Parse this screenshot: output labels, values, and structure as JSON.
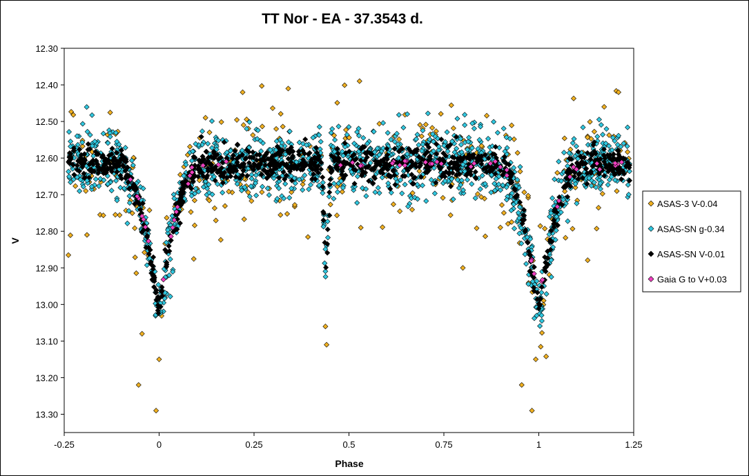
{
  "chart_data": {
    "type": "scatter",
    "title": "TT Nor - EA - 37.3543  d.",
    "xlabel": "Phase",
    "ylabel": "V",
    "xlim": [
      -0.25,
      1.25
    ],
    "ylim": [
      13.35,
      12.3
    ],
    "y_inverted": true,
    "x_ticks": [
      "-0.25",
      "0",
      "0.25",
      "0.5",
      "0.75",
      "1",
      "1.25"
    ],
    "y_ticks": [
      "12.30",
      "12.40",
      "12.50",
      "12.60",
      "12.70",
      "12.80",
      "12.90",
      "13.00",
      "13.10",
      "13.20",
      "13.30"
    ],
    "grid": false,
    "legend_position": "right",
    "marker": "diamond",
    "series": [
      {
        "name": "ASAS-3 V-0.04",
        "color": "#F0B020",
        "light_curve": {
          "baseline": 12.62,
          "scatter": 0.09,
          "count": 300,
          "primary_eclipse": {
            "center": 0.0,
            "depth": 0.4,
            "half_width": 0.12
          },
          "secondary_eclipse": {
            "center": 0.44,
            "depth": 0.3,
            "half_width": 0.012
          }
        },
        "outliers": [
          {
            "x": -0.054,
            "y": 13.22
          },
          {
            "x": -0.008,
            "y": 13.29
          },
          {
            "x": 0.0,
            "y": 13.15
          },
          {
            "x": -0.045,
            "y": 13.08
          },
          {
            "x": 0.441,
            "y": 13.11
          },
          {
            "x": 0.438,
            "y": 13.06
          },
          {
            "x": 0.982,
            "y": 13.29
          },
          {
            "x": 0.992,
            "y": 13.15
          },
          {
            "x": 0.955,
            "y": 13.22
          },
          {
            "x": 0.34,
            "y": 12.41
          },
          {
            "x": 0.22,
            "y": 12.42
          },
          {
            "x": 1.21,
            "y": 12.42
          },
          {
            "x": -0.19,
            "y": 12.81
          },
          {
            "x": 0.8,
            "y": 12.9
          }
        ]
      },
      {
        "name": "ASAS-SN g-0.34",
        "color": "#30C8E0",
        "light_curve": {
          "baseline": 12.61,
          "scatter": 0.045,
          "count": 1400,
          "primary_eclipse": {
            "center": 0.0,
            "depth": 0.42,
            "half_width": 0.12
          },
          "secondary_eclipse": {
            "center": 0.44,
            "depth": 0.3,
            "half_width": 0.012
          }
        }
      },
      {
        "name": "ASAS-SN V-0.01",
        "color": "#000000",
        "light_curve": {
          "baseline": 12.615,
          "scatter": 0.022,
          "count": 1000,
          "primary_eclipse": {
            "center": 0.0,
            "depth": 0.4,
            "half_width": 0.12
          },
          "secondary_eclipse": {
            "center": 0.44,
            "depth": 0.3,
            "half_width": 0.012
          }
        }
      },
      {
        "name": "Gaia G to V+0.03",
        "color": "#F040C0",
        "light_curve": {
          "baseline": 12.615,
          "scatter": 0.006,
          "count": 60,
          "primary_eclipse": {
            "center": 0.0,
            "depth": 0.38,
            "half_width": 0.12
          },
          "secondary_eclipse": {
            "center": 0.44,
            "depth": 0.3,
            "half_width": 0.012
          },
          "phase_ranges": [
            [
              -0.21,
              -0.19
            ],
            [
              -0.09,
              0.22
            ],
            [
              0.45,
              0.9
            ],
            [
              0.91,
              1.23
            ]
          ]
        }
      }
    ]
  }
}
